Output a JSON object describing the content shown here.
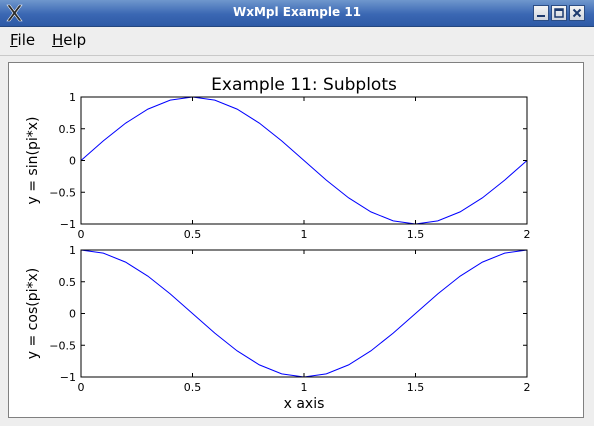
{
  "window": {
    "title": "WxMpl Example 11",
    "controls": [
      "minimize-icon",
      "maximize-icon",
      "close-icon"
    ]
  },
  "menubar": {
    "items": [
      {
        "label": "File",
        "mnemonic": "F",
        "rest": "ile"
      },
      {
        "label": "Help",
        "mnemonic": "H",
        "rest": "elp"
      }
    ]
  },
  "chart_data": [
    {
      "type": "line",
      "title": "Example 11: Subplots",
      "xlabel": "",
      "ylabel": "y = sin(pi*x)",
      "xlim": [
        0,
        2
      ],
      "ylim": [
        -1,
        1
      ],
      "xticks": [
        0,
        0.5,
        1,
        1.5,
        2
      ],
      "yticks": [
        -1,
        -0.5,
        0,
        0.5,
        1
      ],
      "xtick_labels": [
        "0",
        "0.5",
        "1",
        "1.5",
        "2"
      ],
      "ytick_labels": [
        "−1",
        "−0.5",
        "0",
        "0.5",
        "1"
      ],
      "grid": false,
      "series": [
        {
          "color": "#0000ff",
          "x": [
            0,
            0.1,
            0.2,
            0.3,
            0.4,
            0.5,
            0.6,
            0.7,
            0.8,
            0.9,
            1.0,
            1.1,
            1.2,
            1.3,
            1.4,
            1.5,
            1.6,
            1.7,
            1.8,
            1.9,
            2.0
          ],
          "y": [
            0,
            0.309,
            0.588,
            0.809,
            0.951,
            1,
            0.951,
            0.809,
            0.588,
            0.309,
            0,
            -0.309,
            -0.588,
            -0.809,
            -0.951,
            -1,
            -0.951,
            -0.809,
            -0.588,
            -0.309,
            0
          ]
        }
      ]
    },
    {
      "type": "line",
      "title": "",
      "xlabel": "x axis",
      "ylabel": "y = cos(pi*x)",
      "xlim": [
        0,
        2
      ],
      "ylim": [
        -1,
        1
      ],
      "xticks": [
        0,
        0.5,
        1,
        1.5,
        2
      ],
      "yticks": [
        -1,
        -0.5,
        0,
        0.5,
        1
      ],
      "xtick_labels": [
        "0",
        "0.5",
        "1",
        "1.5",
        "2"
      ],
      "ytick_labels": [
        "−1",
        "−0.5",
        "0",
        "0.5",
        "1"
      ],
      "grid": false,
      "series": [
        {
          "color": "#0000ff",
          "x": [
            0,
            0.1,
            0.2,
            0.3,
            0.4,
            0.5,
            0.6,
            0.7,
            0.8,
            0.9,
            1.0,
            1.1,
            1.2,
            1.3,
            1.4,
            1.5,
            1.6,
            1.7,
            1.8,
            1.9,
            2.0
          ],
          "y": [
            1,
            0.951,
            0.809,
            0.588,
            0.309,
            0,
            -0.309,
            -0.588,
            -0.809,
            -0.951,
            -1,
            -0.951,
            -0.809,
            -0.588,
            -0.309,
            0,
            0.309,
            0.588,
            0.809,
            0.951,
            1
          ]
        }
      ]
    }
  ]
}
